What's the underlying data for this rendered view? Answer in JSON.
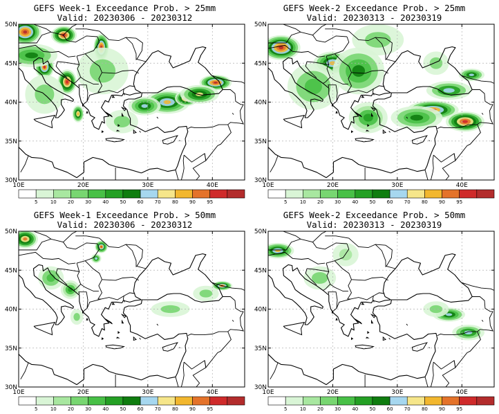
{
  "panels": [
    {
      "title": "GEFS Week-1 Exceedance Prob. > 25mm",
      "valid": "Valid: 20230306 - 20230312",
      "blobs": [
        [
          11,
          49,
          2.5,
          1.6,
          0.95
        ],
        [
          17,
          48.6,
          2,
          1.2,
          0.9
        ],
        [
          22.8,
          47,
          1.2,
          1.8,
          0.95
        ],
        [
          14,
          44.5,
          1.5,
          1.5,
          0.85
        ],
        [
          17.5,
          42.6,
          1.5,
          1.6,
          0.9
        ],
        [
          19.2,
          38.5,
          0.9,
          1.1,
          0.75
        ],
        [
          33,
          40,
          3.5,
          1.5,
          0.7
        ],
        [
          36,
          40.5,
          1.8,
          1,
          0.9
        ],
        [
          40.5,
          42.5,
          2.5,
          1,
          0.95
        ],
        [
          29.5,
          39.5,
          2.5,
          1.2,
          0.6
        ],
        [
          38,
          41,
          3,
          1.2,
          0.65
        ],
        [
          23,
          44,
          4,
          3,
          0.3
        ],
        [
          14,
          41,
          3,
          2.5,
          0.25
        ],
        [
          12,
          46,
          4,
          1.5,
          0.5
        ],
        [
          26,
          37.5,
          2.5,
          1.5,
          0.3
        ]
      ]
    },
    {
      "title": "GEFS Week-2 Exceedance Prob. > 25mm",
      "valid": "Valid: 20230313 - 20230319",
      "blobs": [
        [
          12,
          47,
          3,
          1.6,
          0.95
        ],
        [
          20,
          45,
          3,
          1.5,
          0.7
        ],
        [
          24,
          44,
          4,
          3,
          0.5
        ],
        [
          35.5,
          39,
          4,
          1.2,
          0.85
        ],
        [
          40.5,
          37.5,
          3,
          1.3,
          0.9
        ],
        [
          38,
          41.5,
          3.5,
          1.2,
          0.55
        ],
        [
          41.5,
          43.5,
          2,
          0.8,
          0.6
        ],
        [
          33,
          38,
          4,
          1.5,
          0.5
        ],
        [
          25.5,
          38,
          3,
          2,
          0.45
        ],
        [
          17,
          42,
          4,
          3,
          0.35
        ],
        [
          27,
          48,
          4,
          2,
          0.3
        ],
        [
          36,
          45,
          2,
          1.5,
          0.3
        ]
      ]
    },
    {
      "title": "GEFS Week-1 Exceedance Prob. > 50mm",
      "valid": "Valid: 20230306 - 20230312",
      "blobs": [
        [
          11,
          49,
          2,
          1.2,
          0.8
        ],
        [
          22.8,
          48,
          1,
          0.8,
          0.85
        ],
        [
          22,
          46.5,
          0.8,
          0.6,
          0.55
        ],
        [
          41.5,
          43,
          1.6,
          0.6,
          0.85
        ],
        [
          15,
          44,
          2,
          1.5,
          0.35
        ],
        [
          18,
          42.5,
          1.5,
          1.2,
          0.45
        ],
        [
          19,
          39,
          1,
          1,
          0.3
        ],
        [
          33.5,
          40,
          3,
          1,
          0.25
        ],
        [
          39,
          42,
          2,
          1,
          0.3
        ]
      ]
    },
    {
      "title": "GEFS Week-2 Exceedance Prob. > 50mm",
      "valid": "Valid: 20230313 - 20230319",
      "blobs": [
        [
          11.5,
          47.5,
          2.5,
          1,
          0.7
        ],
        [
          18,
          44,
          2.5,
          1.5,
          0.3
        ],
        [
          38,
          39.3,
          2.5,
          0.9,
          0.6
        ],
        [
          41,
          37,
          2.5,
          1,
          0.55
        ],
        [
          36,
          40,
          2,
          1,
          0.3
        ],
        [
          22,
          47,
          2,
          1.5,
          0.2
        ]
      ]
    }
  ],
  "map": {
    "lon_range": [
      10,
      45
    ],
    "lat_range": [
      30,
      50
    ],
    "lon_ticks": [
      {
        "v": 10,
        "label": "10E"
      },
      {
        "v": 20,
        "label": "20E"
      },
      {
        "v": 30,
        "label": "30E"
      },
      {
        "v": 40,
        "label": "40E"
      }
    ],
    "lat_ticks": [
      {
        "v": 30,
        "label": "30N"
      },
      {
        "v": 35,
        "label": "35N"
      },
      {
        "v": 40,
        "label": "40N"
      },
      {
        "v": 45,
        "label": "45N"
      },
      {
        "v": 50,
        "label": "50N"
      }
    ]
  },
  "colorbar": {
    "labels": [
      "5",
      "10",
      "20",
      "30",
      "40",
      "50",
      "60",
      "70",
      "80",
      "90",
      "95"
    ],
    "colors": [
      "#ffffff",
      "#d9f5d6",
      "#a8e7a0",
      "#78d671",
      "#48c046",
      "#24a024",
      "#0f7d0f",
      "#a6d7ef",
      "#f6e68a",
      "#f2b72e",
      "#e4732a",
      "#cf2a2a",
      "#b32c2c"
    ]
  }
}
